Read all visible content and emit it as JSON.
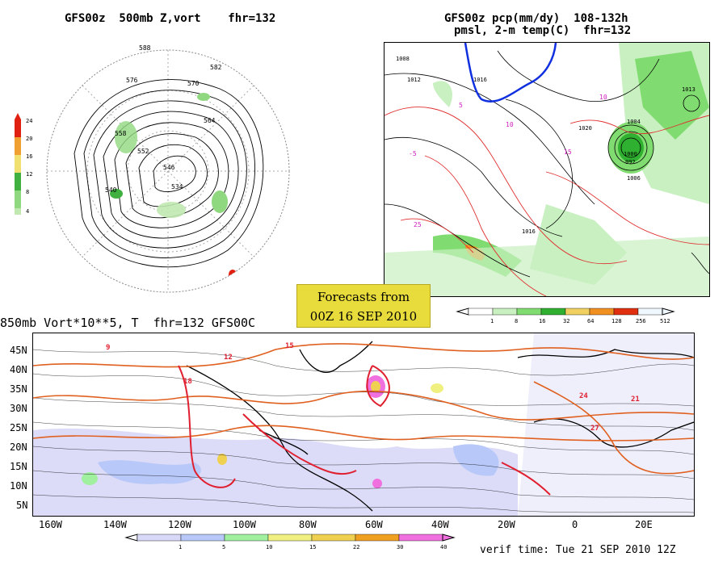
{
  "panels": {
    "polar": {
      "title": "GFS00z  500mb Z,vort    fhr=132",
      "contour_labels": [
        "588",
        "582",
        "576",
        "570",
        "564",
        "558",
        "552",
        "546",
        "540",
        "534"
      ],
      "legend": {
        "ticks": [
          "24",
          "20",
          "16",
          "12",
          "8",
          "4"
        ],
        "colors": [
          "#e02010",
          "#f0a030",
          "#f0e070",
          "#90d880",
          "#40b040",
          "#c0e8b0"
        ]
      }
    },
    "precip": {
      "title_line1": "GFS00z pcp(mm/dy)  108-132h",
      "title_line2": "pmsl, 2-m temp(C)  fhr=132",
      "contour_labels": [
        "1008",
        "1012",
        "1016",
        "1020",
        "1004",
        "1000",
        "992",
        "1013",
        "1006",
        "1016"
      ],
      "temp_labels": [
        "5",
        "10",
        "15",
        "25",
        "-5",
        "10"
      ],
      "legend": {
        "ticks": [
          "1",
          "8",
          "16",
          "32",
          "64",
          "128",
          "256",
          "512"
        ],
        "colors": [
          "#ffffff",
          "#c8f0c0",
          "#80dc70",
          "#30b030",
          "#f0d060",
          "#f09020",
          "#e03010",
          "#f0f8ff"
        ]
      }
    },
    "forecast_box": {
      "line1": "Forecasts from",
      "line2": "00Z 16 SEP 2010"
    },
    "tropics": {
      "title": "850mb Vort*10**5, T  fhr=132 GFS00C",
      "lat_labels": [
        "45N",
        "40N",
        "35N",
        "30N",
        "25N",
        "20N",
        "15N",
        "10N",
        "5N"
      ],
      "lon_labels": [
        "160W",
        "140W",
        "120W",
        "100W",
        "80W",
        "60W",
        "40W",
        "20W",
        "0",
        "20E"
      ],
      "temp_labels": [
        "9",
        "12",
        "15",
        "18",
        "21",
        "24",
        "27"
      ],
      "legend": {
        "ticks": [
          "1",
          "5",
          "10",
          "15",
          "22",
          "30",
          "40"
        ],
        "colors": [
          "#d8d8f8",
          "#b8c8f8",
          "#a0f0a0",
          "#f0f080",
          "#f0d050",
          "#f0a020",
          "#f070e0"
        ]
      },
      "verif": "verif time: Tue 21 SEP 2010 12Z"
    }
  }
}
